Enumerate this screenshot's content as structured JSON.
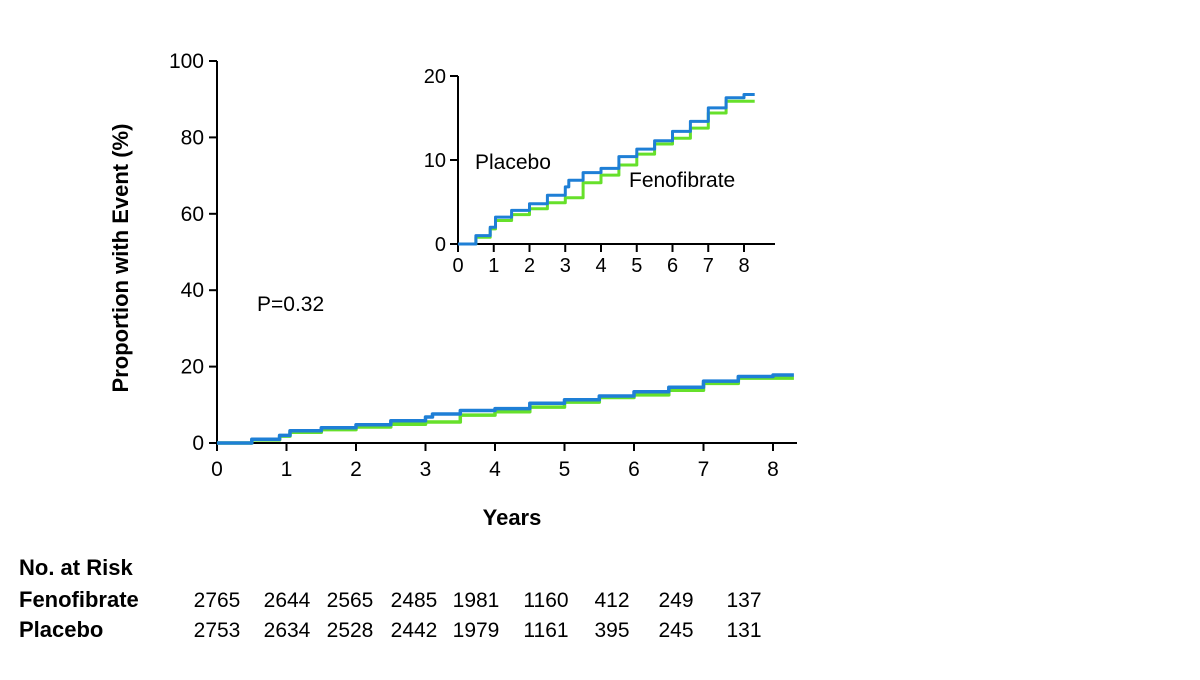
{
  "chart_data": [
    {
      "type": "line",
      "title": "",
      "xlabel": "Years",
      "ylabel": "Proportion with Event (%)",
      "xlim": [
        0,
        8.35
      ],
      "ylim": [
        0,
        100
      ],
      "x_ticks": [
        "0",
        "1",
        "2",
        "3",
        "4",
        "5",
        "6",
        "7",
        "8"
      ],
      "y_ticks": [
        "0",
        "20",
        "40",
        "60",
        "80",
        "100"
      ],
      "grid": false,
      "annotation": "P=0.32",
      "series": [
        {
          "name": "Fenofibrate",
          "color": "#66e02a",
          "x": [
            0,
            0.5,
            0.9,
            1.05,
            1.5,
            2,
            2.5,
            3,
            3.5,
            4,
            4.5,
            5,
            5.5,
            6,
            6.5,
            7,
            7.5,
            8,
            8.3
          ],
          "y": [
            0,
            0.8,
            1.8,
            2.8,
            3.5,
            4.2,
            4.9,
            5.5,
            7.3,
            8.2,
            9.4,
            10.7,
            11.9,
            12.6,
            13.8,
            15.6,
            17.0,
            17.0,
            17.0
          ]
        },
        {
          "name": "Placebo",
          "color": "#1e7fd6",
          "x": [
            0,
            0.5,
            0.9,
            1.05,
            1.5,
            2,
            2.5,
            3,
            3.1,
            3.5,
            4,
            4.5,
            5,
            5.5,
            6,
            6.5,
            7,
            7.5,
            8,
            8.3
          ],
          "y": [
            0,
            1.0,
            2.0,
            3.2,
            4.0,
            4.8,
            5.8,
            6.8,
            7.6,
            8.5,
            9.0,
            10.4,
            11.3,
            12.3,
            13.4,
            14.6,
            16.2,
            17.4,
            17.8,
            17.8
          ]
        }
      ]
    },
    {
      "type": "line",
      "title": "",
      "xlim": [
        0,
        8.9
      ],
      "ylim": [
        0,
        20
      ],
      "x_ticks": [
        "0",
        "1",
        "2",
        "3",
        "4",
        "5",
        "6",
        "7",
        "8"
      ],
      "y_ticks": [
        "0",
        "10",
        "20"
      ],
      "grid": false,
      "labels": [
        "Placebo",
        "Fenofibrate"
      ],
      "series": [
        {
          "name": "Fenofibrate",
          "color": "#66e02a",
          "x": [
            0,
            0.5,
            0.9,
            1.05,
            1.5,
            2,
            2.5,
            3,
            3.5,
            4,
            4.5,
            5,
            5.5,
            6,
            6.5,
            7,
            7.5,
            8,
            8.3
          ],
          "y": [
            0,
            0.8,
            1.8,
            2.8,
            3.5,
            4.2,
            4.9,
            5.5,
            7.3,
            8.2,
            9.4,
            10.7,
            11.9,
            12.6,
            13.8,
            15.6,
            17.0,
            17.0,
            17.0
          ]
        },
        {
          "name": "Placebo",
          "color": "#1e7fd6",
          "x": [
            0,
            0.5,
            0.9,
            1.05,
            1.5,
            2,
            2.5,
            3,
            3.1,
            3.5,
            4,
            4.5,
            5,
            5.5,
            6,
            6.5,
            7,
            7.5,
            8,
            8.3
          ],
          "y": [
            0,
            1.0,
            2.0,
            3.2,
            4.0,
            4.8,
            5.8,
            6.8,
            7.6,
            8.5,
            9.0,
            10.4,
            11.3,
            12.3,
            13.4,
            14.6,
            16.2,
            17.4,
            17.8,
            17.8
          ]
        }
      ]
    }
  ],
  "risk_table": {
    "title": "No. at Risk",
    "rows": [
      {
        "label": "Fenofibrate",
        "values": [
          "2765",
          "2644",
          "2565",
          "2485",
          "1981",
          "1160",
          "412",
          "249",
          "137"
        ]
      },
      {
        "label": "Placebo",
        "values": [
          "2753",
          "2634",
          "2528",
          "2442",
          "1979",
          "1161",
          "395",
          "245",
          "131"
        ]
      }
    ]
  }
}
